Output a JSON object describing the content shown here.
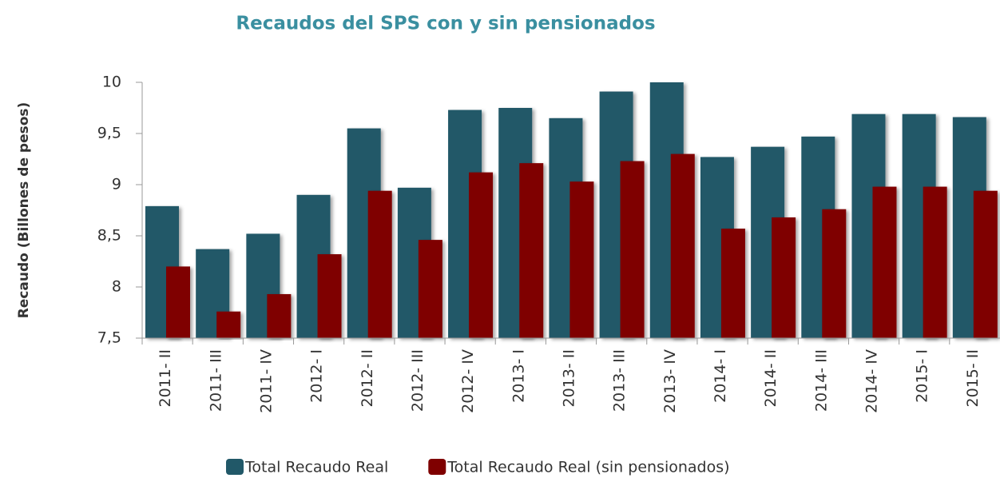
{
  "chart_data": {
    "type": "bar",
    "title": "Recaudos del SPS  con y sin pensionados",
    "y_label": "Recaudo (Billones de pesos)",
    "categories": [
      "2011- II",
      "2011- III",
      "2011- IV",
      "2012- I",
      "2012- II",
      "2012- III",
      "2012- IV",
      "2013- I",
      "2013- II",
      "2013- III",
      "2013- IV",
      "2014- I",
      "2014- II",
      "2014- III",
      "2014- IV",
      "2015- I",
      "2015- II"
    ],
    "series": [
      {
        "name": "Total Recaudo Real",
        "color": "#215868",
        "values": [
          8.79,
          8.37,
          8.52,
          8.9,
          9.55,
          8.97,
          9.73,
          9.75,
          9.65,
          9.91,
          10.0,
          9.27,
          9.37,
          9.47,
          9.69,
          9.69,
          9.66
        ]
      },
      {
        "name": "Total Recaudo Real (sin pensionados)",
        "color": "#7f0000",
        "values": [
          8.2,
          7.76,
          7.93,
          8.32,
          8.94,
          8.46,
          9.12,
          9.21,
          9.03,
          9.23,
          9.3,
          8.57,
          8.68,
          8.76,
          8.98,
          8.98,
          8.94
        ]
      }
    ],
    "ylim": [
      7.5,
      10
    ],
    "yticks": [
      {
        "value": 7.5,
        "label": "7,5"
      },
      8,
      {
        "value": 8.5,
        "label": "8,5"
      },
      9,
      {
        "value": 9.5,
        "label": "9,5"
      },
      10
    ],
    "grid": false,
    "legend": "bottom"
  }
}
